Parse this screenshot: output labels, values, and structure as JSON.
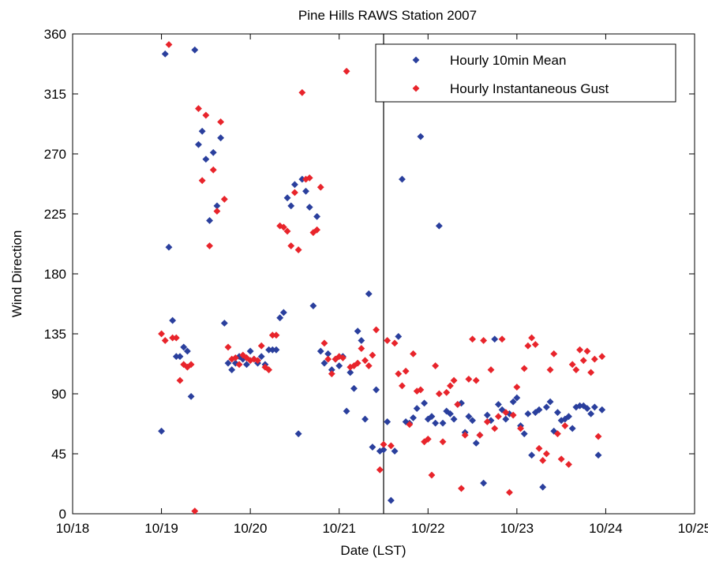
{
  "chart_data": {
    "type": "scatter",
    "title": "Pine Hills RAWS Station 2007",
    "xlabel": "Date (LST)",
    "ylabel": "Wind Direction",
    "xlim": [
      "10/18",
      "10/25"
    ],
    "ylim": [
      0,
      360
    ],
    "x_ticks": [
      "10/18",
      "10/19",
      "10/20",
      "10/21",
      "10/22",
      "10/23",
      "10/24",
      "10/25"
    ],
    "y_ticks": [
      0,
      45,
      90,
      135,
      180,
      225,
      270,
      315,
      360
    ],
    "vertical_line_x": "10/21 12:00",
    "grid": false,
    "legend_position": "top-right",
    "series": [
      {
        "name": "Hourly 10min Mean",
        "color": "#2a3f9d",
        "marker": "diamond",
        "points": [
          [
            "10/19 00:00",
            62
          ],
          [
            "10/19 01:00",
            345
          ],
          [
            "10/19 02:00",
            200
          ],
          [
            "10/19 03:00",
            145
          ],
          [
            "10/19 04:00",
            118
          ],
          [
            "10/19 05:00",
            118
          ],
          [
            "10/19 06:00",
            125
          ],
          [
            "10/19 07:00",
            122
          ],
          [
            "10/19 08:00",
            88
          ],
          [
            "10/19 09:00",
            348
          ],
          [
            "10/19 10:00",
            277
          ],
          [
            "10/19 11:00",
            287
          ],
          [
            "10/19 12:00",
            266
          ],
          [
            "10/19 13:00",
            220
          ],
          [
            "10/19 14:00",
            271
          ],
          [
            "10/19 15:00",
            231
          ],
          [
            "10/19 16:00",
            282
          ],
          [
            "10/19 17:00",
            143
          ],
          [
            "10/19 18:00",
            113
          ],
          [
            "10/19 19:00",
            108
          ],
          [
            "10/19 20:00",
            113
          ],
          [
            "10/19 21:00",
            118
          ],
          [
            "10/19 22:00",
            116
          ],
          [
            "10/19 23:00",
            112
          ],
          [
            "10/20 00:00",
            122
          ],
          [
            "10/20 01:00",
            116
          ],
          [
            "10/20 02:00",
            113
          ],
          [
            "10/20 03:00",
            118
          ],
          [
            "10/20 04:00",
            112
          ],
          [
            "10/20 05:00",
            123
          ],
          [
            "10/20 06:00",
            123
          ],
          [
            "10/20 07:00",
            123
          ],
          [
            "10/20 08:00",
            147
          ],
          [
            "10/20 09:00",
            151
          ],
          [
            "10/20 10:00",
            237
          ],
          [
            "10/20 11:00",
            231
          ],
          [
            "10/20 12:00",
            247
          ],
          [
            "10/20 13:00",
            60
          ],
          [
            "10/20 14:00",
            251
          ],
          [
            "10/20 15:00",
            242
          ],
          [
            "10/20 16:00",
            230
          ],
          [
            "10/20 17:00",
            156
          ],
          [
            "10/20 18:00",
            223
          ],
          [
            "10/20 19:00",
            122
          ],
          [
            "10/20 20:00",
            113
          ],
          [
            "10/20 21:00",
            120
          ],
          [
            "10/20 22:00",
            108
          ],
          [
            "10/20 23:00",
            116
          ],
          [
            "10/21 00:00",
            111
          ],
          [
            "10/21 01:00",
            118
          ],
          [
            "10/21 02:00",
            77
          ],
          [
            "10/21 03:00",
            106
          ],
          [
            "10/21 04:00",
            94
          ],
          [
            "10/21 05:00",
            137
          ],
          [
            "10/21 06:00",
            130
          ],
          [
            "10/21 07:00",
            71
          ],
          [
            "10/21 08:00",
            165
          ],
          [
            "10/21 09:00",
            50
          ],
          [
            "10/21 10:00",
            93
          ],
          [
            "10/21 11:00",
            47
          ],
          [
            "10/21 12:00",
            48
          ],
          [
            "10/21 13:00",
            69
          ],
          [
            "10/21 14:00",
            10
          ],
          [
            "10/21 15:00",
            47
          ],
          [
            "10/21 16:00",
            133
          ],
          [
            "10/21 17:00",
            251
          ],
          [
            "10/21 18:00",
            69
          ],
          [
            "10/21 19:00",
            68
          ],
          [
            "10/21 20:00",
            72
          ],
          [
            "10/21 21:00",
            79
          ],
          [
            "10/21 22:00",
            283
          ],
          [
            "10/21 23:00",
            83
          ],
          [
            "10/22 00:00",
            71
          ],
          [
            "10/22 01:00",
            73
          ],
          [
            "10/22 02:00",
            68
          ],
          [
            "10/22 03:00",
            216
          ],
          [
            "10/22 04:00",
            68
          ],
          [
            "10/22 05:00",
            77
          ],
          [
            "10/22 06:00",
            75
          ],
          [
            "10/22 07:00",
            71
          ],
          [
            "10/22 08:00",
            82
          ],
          [
            "10/22 09:00",
            83
          ],
          [
            "10/22 10:00",
            61
          ],
          [
            "10/22 11:00",
            73
          ],
          [
            "10/22 12:00",
            70
          ],
          [
            "10/22 13:00",
            53
          ],
          [
            "10/22 14:00",
            59
          ],
          [
            "10/22 15:00",
            23
          ],
          [
            "10/22 16:00",
            74
          ],
          [
            "10/22 17:00",
            70
          ],
          [
            "10/22 18:00",
            131
          ],
          [
            "10/22 19:00",
            82
          ],
          [
            "10/22 20:00",
            78
          ],
          [
            "10/22 21:00",
            71
          ],
          [
            "10/22 22:00",
            75
          ],
          [
            "10/22 23:00",
            84
          ],
          [
            "10/23 00:00",
            87
          ],
          [
            "10/23 01:00",
            66
          ],
          [
            "10/23 02:00",
            60
          ],
          [
            "10/23 03:00",
            75
          ],
          [
            "10/23 04:00",
            44
          ],
          [
            "10/23 05:00",
            76
          ],
          [
            "10/23 06:00",
            78
          ],
          [
            "10/23 07:00",
            20
          ],
          [
            "10/23 08:00",
            80
          ],
          [
            "10/23 09:00",
            84
          ],
          [
            "10/23 10:00",
            62
          ],
          [
            "10/23 11:00",
            76
          ],
          [
            "10/23 12:00",
            70
          ],
          [
            "10/23 13:00",
            71
          ],
          [
            "10/23 14:00",
            73
          ],
          [
            "10/23 15:00",
            64
          ],
          [
            "10/23 16:00",
            80
          ],
          [
            "10/23 17:00",
            81
          ],
          [
            "10/23 18:00",
            81
          ],
          [
            "10/23 19:00",
            79
          ],
          [
            "10/23 20:00",
            75
          ],
          [
            "10/23 21:00",
            80
          ],
          [
            "10/23 22:00",
            44
          ],
          [
            "10/23 23:00",
            78
          ]
        ]
      },
      {
        "name": "Hourly Instantaneous Gust",
        "color": "#e8242b",
        "marker": "diamond",
        "points": [
          [
            "10/19 00:00",
            135
          ],
          [
            "10/19 01:00",
            130
          ],
          [
            "10/19 02:00",
            352
          ],
          [
            "10/19 03:00",
            132
          ],
          [
            "10/19 04:00",
            132
          ],
          [
            "10/19 05:00",
            100
          ],
          [
            "10/19 06:00",
            112
          ],
          [
            "10/19 07:00",
            110
          ],
          [
            "10/19 08:00",
            112
          ],
          [
            "10/19 09:00",
            2
          ],
          [
            "10/19 10:00",
            304
          ],
          [
            "10/19 11:00",
            250
          ],
          [
            "10/19 12:00",
            299
          ],
          [
            "10/19 13:00",
            201
          ],
          [
            "10/19 14:00",
            258
          ],
          [
            "10/19 15:00",
            227
          ],
          [
            "10/19 16:00",
            294
          ],
          [
            "10/19 17:00",
            236
          ],
          [
            "10/19 18:00",
            125
          ],
          [
            "10/19 19:00",
            116
          ],
          [
            "10/19 20:00",
            117
          ],
          [
            "10/19 21:00",
            112
          ],
          [
            "10/19 22:00",
            119
          ],
          [
            "10/19 23:00",
            117
          ],
          [
            "10/20 00:00",
            115
          ],
          [
            "10/20 01:00",
            116
          ],
          [
            "10/20 02:00",
            115
          ],
          [
            "10/20 03:00",
            126
          ],
          [
            "10/20 04:00",
            110
          ],
          [
            "10/20 05:00",
            108
          ],
          [
            "10/20 06:00",
            134
          ],
          [
            "10/20 07:00",
            134
          ],
          [
            "10/20 08:00",
            216
          ],
          [
            "10/20 09:00",
            215
          ],
          [
            "10/20 10:00",
            212
          ],
          [
            "10/20 11:00",
            201
          ],
          [
            "10/20 12:00",
            241
          ],
          [
            "10/20 13:00",
            198
          ],
          [
            "10/20 14:00",
            316
          ],
          [
            "10/20 15:00",
            251
          ],
          [
            "10/20 16:00",
            252
          ],
          [
            "10/20 17:00",
            211
          ],
          [
            "10/20 18:00",
            213
          ],
          [
            "10/20 19:00",
            245
          ],
          [
            "10/20 20:00",
            128
          ],
          [
            "10/20 21:00",
            116
          ],
          [
            "10/20 22:00",
            105
          ],
          [
            "10/20 23:00",
            116
          ],
          [
            "10/21 00:00",
            118
          ],
          [
            "10/21 01:00",
            117
          ],
          [
            "10/21 02:00",
            332
          ],
          [
            "10/21 03:00",
            110
          ],
          [
            "10/21 04:00",
            111
          ],
          [
            "10/21 05:00",
            113
          ],
          [
            "10/21 06:00",
            124
          ],
          [
            "10/21 07:00",
            115
          ],
          [
            "10/21 08:00",
            111
          ],
          [
            "10/21 09:00",
            119
          ],
          [
            "10/21 10:00",
            138
          ],
          [
            "10/21 11:00",
            33
          ],
          [
            "10/21 12:00",
            52
          ],
          [
            "10/21 13:00",
            130
          ],
          [
            "10/21 14:00",
            51
          ],
          [
            "10/21 15:00",
            128
          ],
          [
            "10/21 16:00",
            105
          ],
          [
            "10/21 17:00",
            96
          ],
          [
            "10/21 18:00",
            107
          ],
          [
            "10/21 19:00",
            67
          ],
          [
            "10/21 20:00",
            120
          ],
          [
            "10/21 21:00",
            92
          ],
          [
            "10/21 22:00",
            93
          ],
          [
            "10/21 23:00",
            54
          ],
          [
            "10/22 00:00",
            56
          ],
          [
            "10/22 01:00",
            29
          ],
          [
            "10/22 02:00",
            111
          ],
          [
            "10/22 03:00",
            90
          ],
          [
            "10/22 04:00",
            54
          ],
          [
            "10/22 05:00",
            91
          ],
          [
            "10/22 06:00",
            96
          ],
          [
            "10/22 07:00",
            100
          ],
          [
            "10/22 08:00",
            82
          ],
          [
            "10/22 09:00",
            19
          ],
          [
            "10/22 10:00",
            59
          ],
          [
            "10/22 11:00",
            101
          ],
          [
            "10/22 12:00",
            131
          ],
          [
            "10/22 13:00",
            100
          ],
          [
            "10/22 14:00",
            59
          ],
          [
            "10/22 15:00",
            130
          ],
          [
            "10/22 16:00",
            69
          ],
          [
            "10/22 17:00",
            108
          ],
          [
            "10/22 18:00",
            64
          ],
          [
            "10/22 19:00",
            73
          ],
          [
            "10/22 20:00",
            131
          ],
          [
            "10/22 21:00",
            76
          ],
          [
            "10/22 22:00",
            16
          ],
          [
            "10/22 23:00",
            74
          ],
          [
            "10/23 00:00",
            95
          ],
          [
            "10/23 01:00",
            64
          ],
          [
            "10/23 02:00",
            109
          ],
          [
            "10/23 03:00",
            126
          ],
          [
            "10/23 04:00",
            132
          ],
          [
            "10/23 05:00",
            127
          ],
          [
            "10/23 06:00",
            49
          ],
          [
            "10/23 07:00",
            40
          ],
          [
            "10/23 08:00",
            45
          ],
          [
            "10/23 09:00",
            108
          ],
          [
            "10/23 10:00",
            120
          ],
          [
            "10/23 11:00",
            60
          ],
          [
            "10/23 12:00",
            41
          ],
          [
            "10/23 13:00",
            66
          ],
          [
            "10/23 14:00",
            37
          ],
          [
            "10/23 15:00",
            112
          ],
          [
            "10/23 16:00",
            108
          ],
          [
            "10/23 17:00",
            123
          ],
          [
            "10/23 18:00",
            115
          ],
          [
            "10/23 19:00",
            122
          ],
          [
            "10/23 20:00",
            106
          ],
          [
            "10/23 21:00",
            116
          ],
          [
            "10/23 22:00",
            58
          ],
          [
            "10/23 23:00",
            118
          ]
        ]
      }
    ]
  }
}
